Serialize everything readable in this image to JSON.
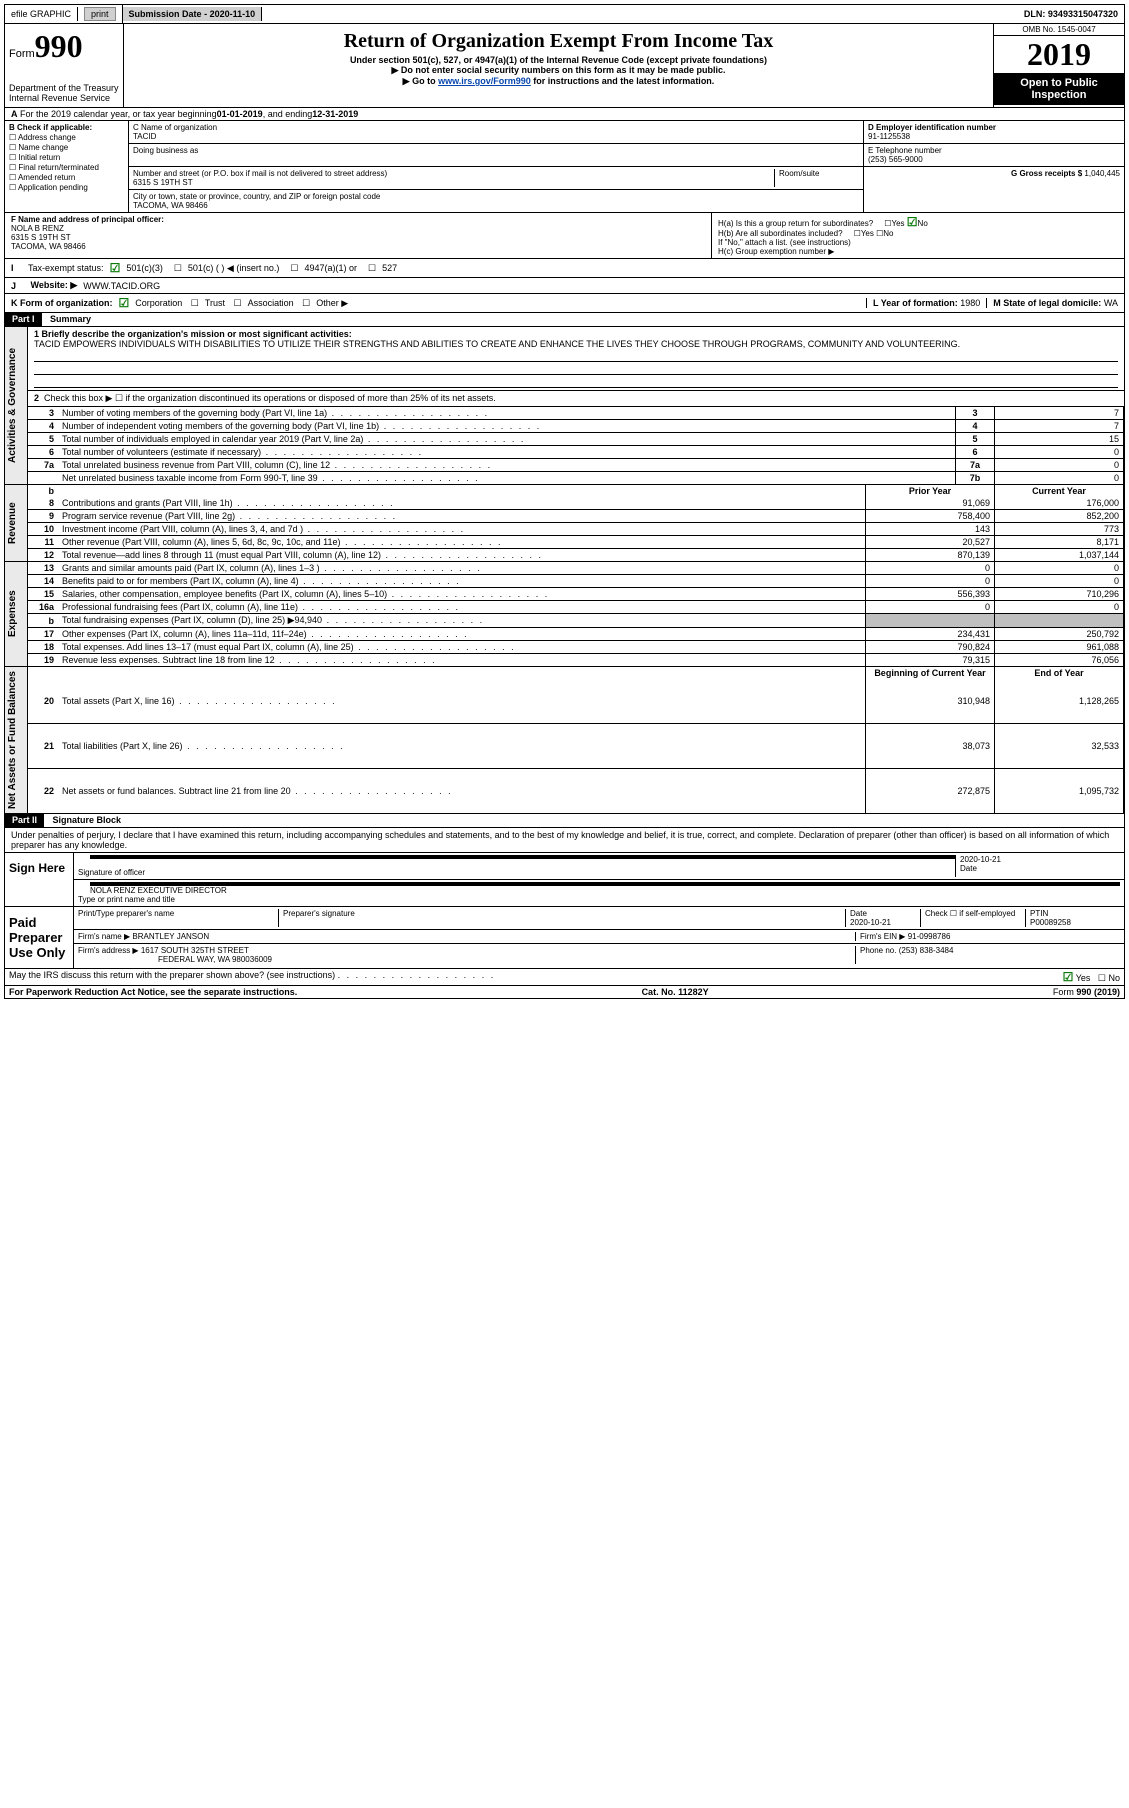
{
  "topbar": {
    "efile": "efile GRAPHIC",
    "print": "print",
    "submission_label": "Submission Date -",
    "submission_date": "2020-11-10",
    "dln_label": "DLN:",
    "dln": "93493315047320"
  },
  "header": {
    "form_word": "Form",
    "form_number": "990",
    "title": "Return of Organization Exempt From Income Tax",
    "subtitle1": "Under section 501(c), 527, or 4947(a)(1) of the Internal Revenue Code (except private foundations)",
    "subtitle2": "▶ Do not enter social security numbers on this form as it may be made public.",
    "subtitle3_pre": "▶ Go to ",
    "subtitle3_link": "www.irs.gov/Form990",
    "subtitle3_post": " for instructions and the latest information.",
    "dept1": "Department of the Treasury",
    "dept2": "Internal Revenue Service",
    "omb": "OMB No. 1545-0047",
    "year": "2019",
    "open_public": "Open to Public Inspection"
  },
  "line_a": {
    "text_pre": "For the 2019 calendar year, or tax year beginning ",
    "begin": "01-01-2019",
    "text_mid": " , and ending ",
    "end": "12-31-2019"
  },
  "section_b": {
    "label": "B Check if applicable:",
    "items": [
      "Address change",
      "Name change",
      "Initial return",
      "Final return/terminated",
      "Amended return",
      "Application pending"
    ]
  },
  "section_c": {
    "label": "C Name of organization",
    "name": "TACID",
    "dba_label": "Doing business as",
    "addr_label": "Number and street (or P.O. box if mail is not delivered to street address)",
    "room_label": "Room/suite",
    "addr": "6315 S 19TH ST",
    "city_label": "City or town, state or province, country, and ZIP or foreign postal code",
    "city": "TACOMA, WA  98466"
  },
  "section_d": {
    "label": "D Employer identification number",
    "ein": "91-1125538"
  },
  "section_e": {
    "label": "E Telephone number",
    "phone": "(253) 565-9000"
  },
  "section_g": {
    "label": "G Gross receipts $",
    "value": "1,040,445"
  },
  "section_f": {
    "label": "F Name and address of principal officer:",
    "name": "NOLA B RENZ",
    "addr1": "6315 S 19TH ST",
    "addr2": "TACOMA, WA  98466"
  },
  "section_h": {
    "ha": "H(a)  Is this a group return for subordinates?",
    "hb": "H(b)  Are all subordinates included?",
    "hb_note": "If \"No,\" attach a list. (see instructions)",
    "hc": "H(c)  Group exemption number ▶",
    "yes": "Yes",
    "no": "No"
  },
  "tax_status": {
    "label": "Tax-exempt status:",
    "opts": [
      "501(c)(3)",
      "501(c) (  ) ◀ (insert no.)",
      "4947(a)(1) or",
      "527"
    ]
  },
  "section_j": {
    "label": "Website: ▶",
    "value": "WWW.TACID.ORG"
  },
  "section_k": {
    "label": "K Form of organization:",
    "opts": [
      "Corporation",
      "Trust",
      "Association",
      "Other ▶"
    ]
  },
  "section_l": {
    "label": "L Year of formation:",
    "value": "1980"
  },
  "section_m": {
    "label": "M State of legal domicile:",
    "value": "WA"
  },
  "part1": {
    "label": "Part I",
    "title": "Summary",
    "line1_label": "1 Briefly describe the organization's mission or most significant activities:",
    "mission": "TACID EMPOWERS INDIVIDUALS WITH DISABILITIES TO UTILIZE THEIR STRENGTHS AND ABILITIES TO CREATE AND ENHANCE THE LIVES THEY CHOOSE THROUGH PROGRAMS, COMMUNITY AND VOLUNTEERING.",
    "line2": "Check this box ▶ ☐ if the organization discontinued its operations or disposed of more than 25% of its net assets.",
    "tabs": {
      "activities": "Activities & Governance",
      "revenue": "Revenue",
      "expenses": "Expenses",
      "netassets": "Net Assets or Fund Balances"
    },
    "gov_lines": [
      {
        "n": "3",
        "desc": "Number of voting members of the governing body (Part VI, line 1a)",
        "box": "3",
        "val": "7"
      },
      {
        "n": "4",
        "desc": "Number of independent voting members of the governing body (Part VI, line 1b)",
        "box": "4",
        "val": "7"
      },
      {
        "n": "5",
        "desc": "Total number of individuals employed in calendar year 2019 (Part V, line 2a)",
        "box": "5",
        "val": "15"
      },
      {
        "n": "6",
        "desc": "Total number of volunteers (estimate if necessary)",
        "box": "6",
        "val": "0"
      },
      {
        "n": "7a",
        "desc": "Total unrelated business revenue from Part VIII, column (C), line 12",
        "box": "7a",
        "val": "0"
      },
      {
        "n": "",
        "desc": "Net unrelated business taxable income from Form 990-T, line 39",
        "box": "7b",
        "val": "0"
      }
    ],
    "col_headers": {
      "prior": "Prior Year",
      "current": "Current Year"
    },
    "rev_lines": [
      {
        "n": "8",
        "desc": "Contributions and grants (Part VIII, line 1h)",
        "prior": "91,069",
        "current": "176,000"
      },
      {
        "n": "9",
        "desc": "Program service revenue (Part VIII, line 2g)",
        "prior": "758,400",
        "current": "852,200"
      },
      {
        "n": "10",
        "desc": "Investment income (Part VIII, column (A), lines 3, 4, and 7d )",
        "prior": "143",
        "current": "773"
      },
      {
        "n": "11",
        "desc": "Other revenue (Part VIII, column (A), lines 5, 6d, 8c, 9c, 10c, and 11e)",
        "prior": "20,527",
        "current": "8,171"
      },
      {
        "n": "12",
        "desc": "Total revenue—add lines 8 through 11 (must equal Part VIII, column (A), line 12)",
        "prior": "870,139",
        "current": "1,037,144"
      }
    ],
    "exp_lines": [
      {
        "n": "13",
        "desc": "Grants and similar amounts paid (Part IX, column (A), lines 1–3 )",
        "prior": "0",
        "current": "0"
      },
      {
        "n": "14",
        "desc": "Benefits paid to or for members (Part IX, column (A), line 4)",
        "prior": "0",
        "current": "0"
      },
      {
        "n": "15",
        "desc": "Salaries, other compensation, employee benefits (Part IX, column (A), lines 5–10)",
        "prior": "556,393",
        "current": "710,296"
      },
      {
        "n": "16a",
        "desc": "Professional fundraising fees (Part IX, column (A), line 11e)",
        "prior": "0",
        "current": "0"
      },
      {
        "n": "b",
        "desc": "Total fundraising expenses (Part IX, column (D), line 25) ▶94,940",
        "prior": "GRAY",
        "current": "GRAY"
      },
      {
        "n": "17",
        "desc": "Other expenses (Part IX, column (A), lines 11a–11d, 11f–24e)",
        "prior": "234,431",
        "current": "250,792"
      },
      {
        "n": "18",
        "desc": "Total expenses. Add lines 13–17 (must equal Part IX, column (A), line 25)",
        "prior": "790,824",
        "current": "961,088"
      },
      {
        "n": "19",
        "desc": "Revenue less expenses. Subtract line 18 from line 12",
        "prior": "79,315",
        "current": "76,056"
      }
    ],
    "na_headers": {
      "begin": "Beginning of Current Year",
      "end": "End of Year"
    },
    "na_lines": [
      {
        "n": "20",
        "desc": "Total assets (Part X, line 16)",
        "begin": "310,948",
        "end": "1,128,265"
      },
      {
        "n": "21",
        "desc": "Total liabilities (Part X, line 26)",
        "begin": "38,073",
        "end": "32,533"
      },
      {
        "n": "22",
        "desc": "Net assets or fund balances. Subtract line 21 from line 20",
        "begin": "272,875",
        "end": "1,095,732"
      }
    ]
  },
  "part2": {
    "label": "Part II",
    "title": "Signature Block",
    "perjury": "Under penalties of perjury, I declare that I have examined this return, including accompanying schedules and statements, and to the best of my knowledge and belief, it is true, correct, and complete. Declaration of preparer (other than officer) is based on all information of which preparer has any knowledge.",
    "sign_here": "Sign Here",
    "sig_officer": "Signature of officer",
    "date_label": "Date",
    "date": "2020-10-21",
    "officer_name": "NOLA RENZ  EXECUTIVE DIRECTOR",
    "type_name": "Type or print name and title",
    "paid": "Paid Preparer Use Only",
    "prep_name_label": "Print/Type preparer's name",
    "prep_sig_label": "Preparer's signature",
    "prep_date_label": "Date",
    "prep_date": "2020-10-21",
    "check_self": "Check ☐ if self-employed",
    "ptin_label": "PTIN",
    "ptin": "P00089258",
    "firm_name_label": "Firm's name    ▶",
    "firm_name": "BRANTLEY JANSON",
    "firm_ein_label": "Firm's EIN ▶",
    "firm_ein": "91-0998786",
    "firm_addr_label": "Firm's address ▶",
    "firm_addr1": "1617 SOUTH 325TH STREET",
    "firm_addr2": "FEDERAL WAY, WA  980036009",
    "firm_phone_label": "Phone no.",
    "firm_phone": "(253) 838-3484",
    "irs_discuss": "May the IRS discuss this return with the preparer shown above? (see instructions)"
  },
  "footer": {
    "paperwork": "For Paperwork Reduction Act Notice, see the separate instructions.",
    "cat": "Cat. No. 11282Y",
    "form": "Form 990 (2019)"
  }
}
